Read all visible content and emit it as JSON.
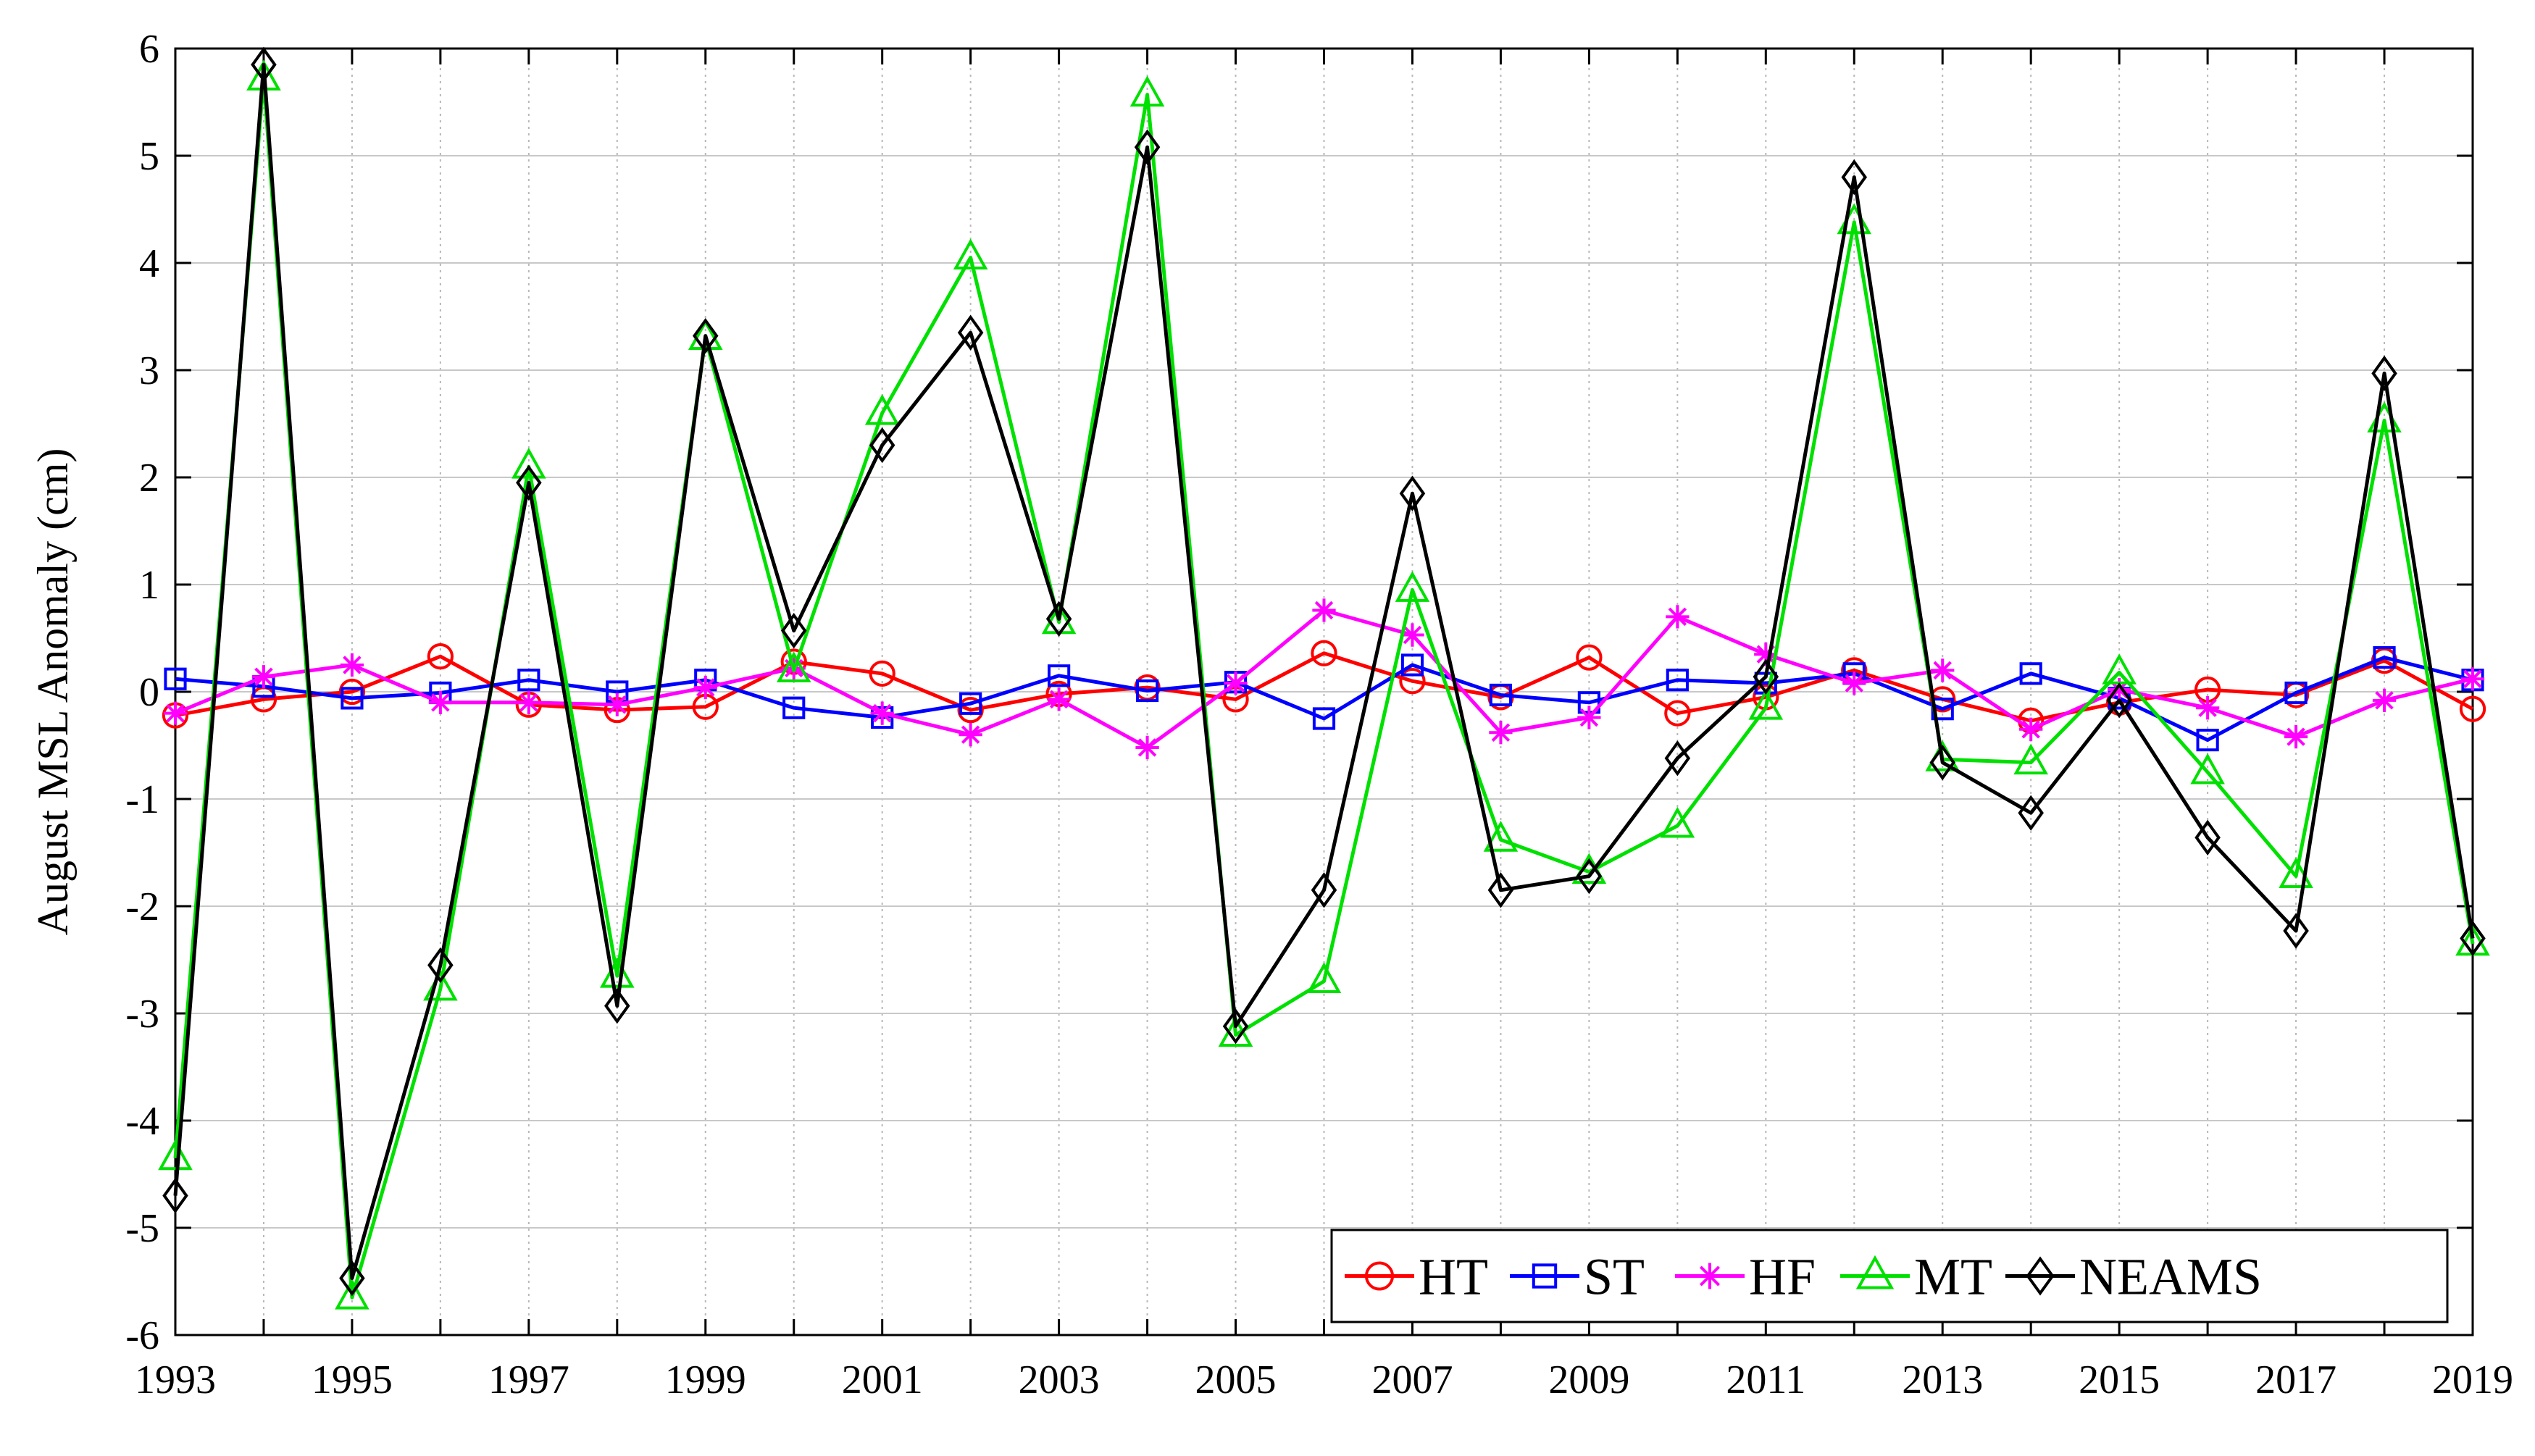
{
  "chart_data": {
    "type": "line",
    "title": "",
    "xlabel": "",
    "ylabel": "August MSL Anomaly (cm)",
    "xlim": [
      1993,
      2019
    ],
    "ylim": [
      -6,
      6
    ],
    "x_ticks": [
      1993,
      1995,
      1997,
      1999,
      2001,
      2003,
      2005,
      2007,
      2009,
      2011,
      2013,
      2015,
      2017,
      2019
    ],
    "x_tick_labels": [
      "1993",
      "1995",
      "1997",
      "1999",
      "2001",
      "2003",
      "2005",
      "2007",
      "2009",
      "2011",
      "2013",
      "2015",
      "2017",
      "2019"
    ],
    "y_ticks": [
      -6,
      -5,
      -4,
      -3,
      -2,
      -1,
      0,
      1,
      2,
      3,
      4,
      5,
      6
    ],
    "y_tick_labels": [
      "-6",
      "-5",
      "-4",
      "-3",
      "-2",
      "-1",
      "0",
      "1",
      "2",
      "3",
      "4",
      "5",
      "6"
    ],
    "grid": true,
    "legend_position": "bottom-right",
    "x": [
      1993,
      1994,
      1995,
      1996,
      1997,
      1998,
      1999,
      2000,
      2001,
      2002,
      2003,
      2004,
      2005,
      2006,
      2007,
      2008,
      2009,
      2010,
      2011,
      2012,
      2013,
      2014,
      2015,
      2016,
      2017,
      2018,
      2019
    ],
    "series": [
      {
        "name": "HT",
        "color": "#ff0000",
        "marker": "circle",
        "values": [
          -0.22,
          -0.07,
          0.0,
          0.33,
          -0.12,
          -0.17,
          -0.14,
          0.28,
          0.17,
          -0.17,
          -0.02,
          0.04,
          -0.07,
          0.36,
          0.1,
          -0.05,
          0.32,
          -0.2,
          -0.05,
          0.2,
          -0.07,
          -0.27,
          -0.1,
          0.02,
          -0.03,
          0.29,
          -0.16
        ]
      },
      {
        "name": "ST",
        "color": "#0000ff",
        "marker": "square",
        "values": [
          0.12,
          0.05,
          -0.06,
          -0.01,
          0.11,
          0.0,
          0.11,
          -0.15,
          -0.24,
          -0.11,
          0.15,
          0.01,
          0.09,
          -0.25,
          0.25,
          -0.03,
          -0.1,
          0.11,
          0.08,
          0.17,
          -0.16,
          0.17,
          -0.06,
          -0.45,
          -0.01,
          0.32,
          0.11
        ]
      },
      {
        "name": "HF",
        "color": "#ff00ff",
        "marker": "asterisk",
        "values": [
          -0.2,
          0.14,
          0.25,
          -0.1,
          -0.1,
          -0.12,
          0.04,
          0.22,
          -0.2,
          -0.4,
          -0.07,
          -0.52,
          0.08,
          0.76,
          0.53,
          -0.38,
          -0.24,
          0.7,
          0.35,
          0.08,
          0.2,
          -0.35,
          0.02,
          -0.15,
          -0.42,
          -0.08,
          0.12
        ]
      },
      {
        "name": "MT",
        "color": "#00e000",
        "marker": "triangle",
        "values": [
          -4.35,
          5.72,
          -5.65,
          -2.77,
          2.1,
          -2.65,
          3.3,
          0.2,
          2.6,
          4.05,
          0.65,
          5.57,
          -3.2,
          -2.7,
          0.95,
          -1.38,
          -1.68,
          -1.25,
          -0.15,
          4.38,
          -0.63,
          -0.66,
          0.18,
          -0.75,
          -1.72,
          2.53,
          -2.35
        ]
      },
      {
        "name": "NEAMS",
        "color": "#000000",
        "marker": "diamond",
        "values": [
          -4.7,
          5.85,
          -5.47,
          -2.55,
          1.95,
          -2.93,
          3.32,
          0.57,
          2.3,
          3.35,
          0.68,
          5.08,
          -3.12,
          -1.85,
          1.85,
          -1.85,
          -1.72,
          -0.62,
          0.14,
          4.8,
          -0.66,
          -1.13,
          -0.08,
          -1.36,
          -2.23,
          2.97,
          -2.3
        ]
      }
    ]
  }
}
